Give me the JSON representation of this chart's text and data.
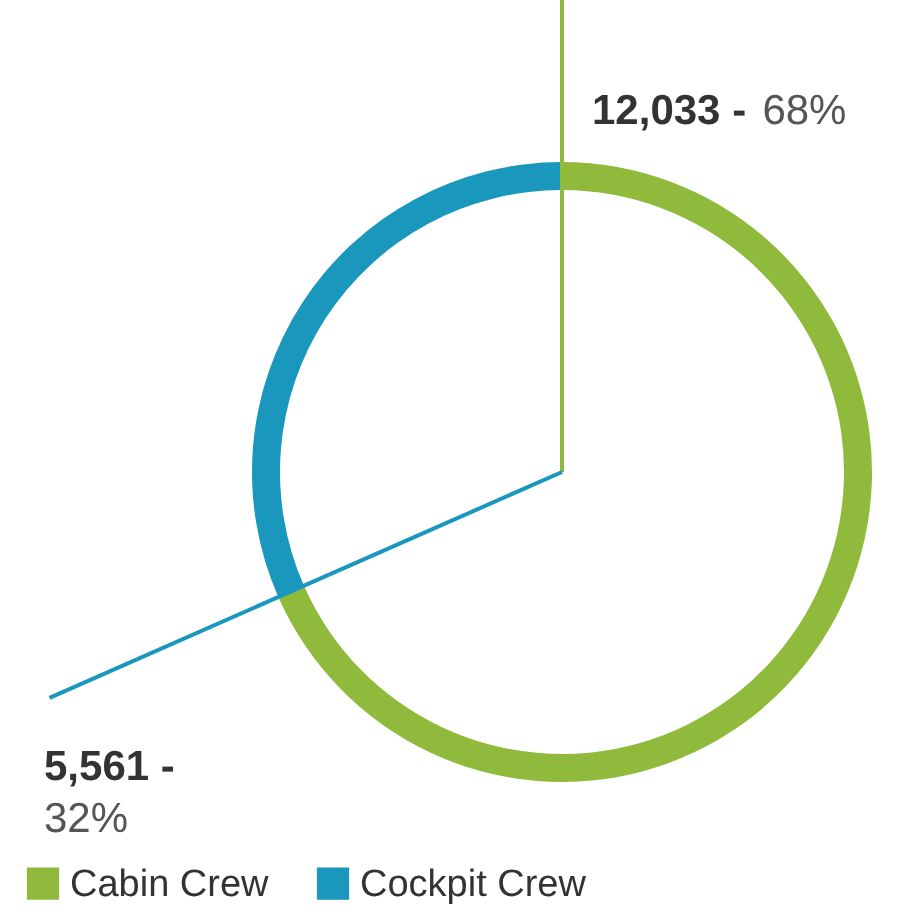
{
  "chart_data": {
    "type": "donut",
    "categories": [
      "Cabin Crew",
      "Cockpit Crew"
    ],
    "values": [
      12033,
      5561
    ],
    "colors": [
      "#8fba3c",
      "#1a97bd"
    ],
    "value_labels": [
      "12,033 - 68%",
      "5,561 - 32%"
    ],
    "legend": "bottom"
  }
}
